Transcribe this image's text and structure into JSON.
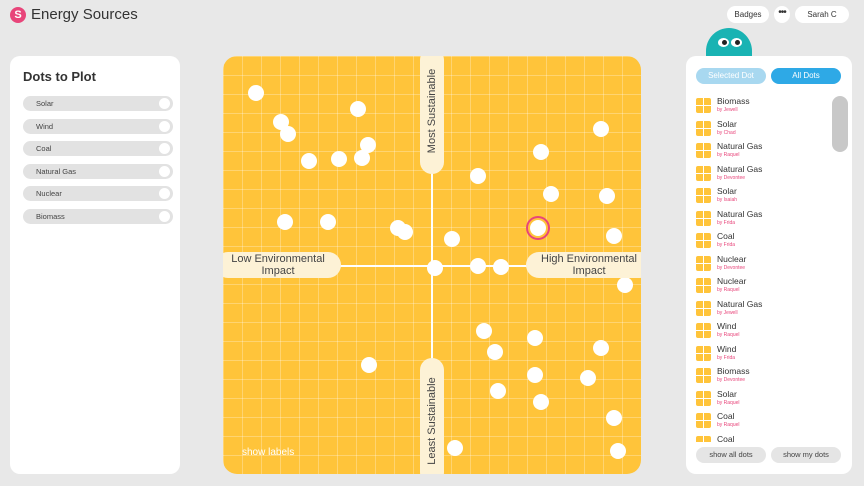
{
  "app": {
    "logo_letter": "S",
    "title": "Energy Sources"
  },
  "header": {
    "badges_label": "Badges",
    "more_label": "•••",
    "user_label": "Sarah C"
  },
  "left_panel": {
    "title": "Dots to Plot",
    "items": [
      "Solar",
      "Wind",
      "Coal",
      "Natural Gas",
      "Nuclear",
      "Biomass"
    ]
  },
  "plot": {
    "left_label_1": "Low Environmental",
    "left_label_2": "Impact",
    "right_label_1": "High Environmental",
    "right_label_2": "Impact",
    "top_label": "Most Sustainable",
    "bottom_label": "Least Sustainable",
    "show_labels": "show labels"
  },
  "right_panel": {
    "tab_selected": "Selected Dot",
    "tab_all": "All Dots",
    "items": [
      {
        "name": "Biomass",
        "by": "by Jewell"
      },
      {
        "name": "Solar",
        "by": "by Chad"
      },
      {
        "name": "Natural Gas",
        "by": "by Raquel"
      },
      {
        "name": "Natural Gas",
        "by": "by Devontee"
      },
      {
        "name": "Solar",
        "by": "by Isaiah"
      },
      {
        "name": "Natural Gas",
        "by": "by Frida"
      },
      {
        "name": "Coal",
        "by": "by Frida"
      },
      {
        "name": "Nuclear",
        "by": "by Devontee"
      },
      {
        "name": "Nuclear",
        "by": "by Raquel"
      },
      {
        "name": "Natural Gas",
        "by": "by Jewell"
      },
      {
        "name": "Wind",
        "by": "by Raquel"
      },
      {
        "name": "Wind",
        "by": "by Frida"
      },
      {
        "name": "Biomass",
        "by": "by Devontee"
      },
      {
        "name": "Solar",
        "by": "by Raquel"
      },
      {
        "name": "Coal",
        "by": "by Raquel"
      },
      {
        "name": "Coal",
        "by": ""
      }
    ],
    "show_all_label": "show all dots",
    "show_mine_label": "show my dots"
  },
  "colors": {
    "accent": "#e8457a",
    "plot": "#ffc43a",
    "tab_active": "#2ea9e6",
    "mascot": "#19b3b3"
  }
}
